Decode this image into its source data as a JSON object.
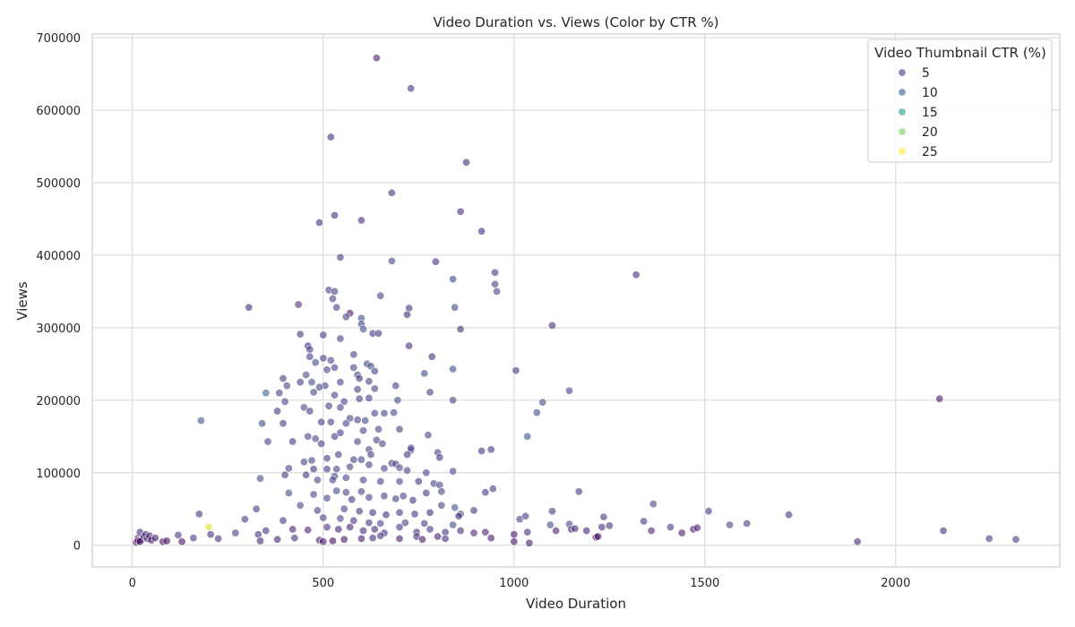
{
  "chart_data": {
    "type": "scatter",
    "title": "Video Duration vs. Views (Color by CTR %)",
    "xlabel": "Video Duration",
    "ylabel": "Views",
    "xlim": [
      -105,
      2430
    ],
    "ylim": [
      -30000,
      705000
    ],
    "xticks": [
      0,
      500,
      1000,
      1500,
      2000
    ],
    "yticks": [
      0,
      100000,
      200000,
      300000,
      400000,
      500000,
      600000,
      700000
    ],
    "grid": true,
    "legend": {
      "title": "Video Thumbnail CTR (%)",
      "placement": "top-right",
      "entries": [
        {
          "label": "5",
          "color": "#46327e"
        },
        {
          "label": "10",
          "color": "#365c8d"
        },
        {
          "label": "15",
          "color": "#1f9e89"
        },
        {
          "label": "20",
          "color": "#6ece58"
        },
        {
          "label": "25",
          "color": "#fde725"
        }
      ]
    },
    "colorscale": {
      "min": 2,
      "max": 27,
      "name": "viridis"
    },
    "points": [
      [
        640,
        672000,
        5
      ],
      [
        730,
        630000,
        6
      ],
      [
        520,
        563000,
        6
      ],
      [
        875,
        528000,
        6
      ],
      [
        680,
        486000,
        6
      ],
      [
        860,
        460000,
        6
      ],
      [
        530,
        455000,
        6
      ],
      [
        490,
        445000,
        6
      ],
      [
        600,
        448000,
        6
      ],
      [
        915,
        433000,
        6
      ],
      [
        545,
        397000,
        7
      ],
      [
        680,
        392000,
        8
      ],
      [
        795,
        391000,
        6
      ],
      [
        950,
        376000,
        7
      ],
      [
        1320,
        373000,
        6
      ],
      [
        840,
        367000,
        9
      ],
      [
        950,
        360000,
        8
      ],
      [
        515,
        352000,
        8
      ],
      [
        530,
        350000,
        8
      ],
      [
        955,
        350000,
        8
      ],
      [
        650,
        344000,
        8
      ],
      [
        305,
        328000,
        6
      ],
      [
        435,
        332000,
        6
      ],
      [
        525,
        340000,
        8
      ],
      [
        535,
        328000,
        8
      ],
      [
        845,
        328000,
        9
      ],
      [
        725,
        327000,
        6
      ],
      [
        570,
        320000,
        3
      ],
      [
        600,
        313000,
        9
      ],
      [
        560,
        315000,
        8
      ],
      [
        720,
        318000,
        6
      ],
      [
        600,
        305000,
        8
      ],
      [
        1100,
        303000,
        6
      ],
      [
        605,
        298000,
        9
      ],
      [
        860,
        298000,
        6
      ],
      [
        440,
        291000,
        7
      ],
      [
        500,
        290000,
        7
      ],
      [
        630,
        292000,
        7
      ],
      [
        645,
        292000,
        7
      ],
      [
        545,
        285000,
        8
      ],
      [
        460,
        275000,
        6
      ],
      [
        725,
        275000,
        6
      ],
      [
        465,
        270000,
        7
      ],
      [
        580,
        263000,
        8
      ],
      [
        500,
        258000,
        8
      ],
      [
        520,
        255000,
        8
      ],
      [
        465,
        260000,
        7
      ],
      [
        785,
        260000,
        6
      ],
      [
        530,
        245000,
        8
      ],
      [
        510,
        242000,
        8
      ],
      [
        395,
        230000,
        7
      ],
      [
        580,
        245000,
        8
      ],
      [
        615,
        250000,
        8
      ],
      [
        625,
        247000,
        9
      ],
      [
        1005,
        241000,
        7
      ],
      [
        840,
        243000,
        9
      ],
      [
        635,
        240000,
        8
      ],
      [
        480,
        252000,
        9
      ],
      [
        590,
        235000,
        9
      ],
      [
        595,
        230000,
        7
      ],
      [
        455,
        235000,
        9
      ],
      [
        470,
        225000,
        9
      ],
      [
        440,
        225000,
        7
      ],
      [
        405,
        220000,
        8
      ],
      [
        545,
        225000,
        8
      ],
      [
        505,
        220000,
        8
      ],
      [
        620,
        226000,
        8
      ],
      [
        765,
        237000,
        9
      ],
      [
        350,
        210000,
        12
      ],
      [
        385,
        210000,
        8
      ],
      [
        635,
        216000,
        8
      ],
      [
        690,
        220000,
        7
      ],
      [
        490,
        218000,
        8
      ],
      [
        590,
        215000,
        8
      ],
      [
        1145,
        213000,
        8
      ],
      [
        780,
        211000,
        8
      ],
      [
        475,
        211000,
        9
      ],
      [
        530,
        207000,
        8
      ],
      [
        555,
        198000,
        8
      ],
      [
        595,
        202000,
        8
      ],
      [
        620,
        203000,
        7
      ],
      [
        695,
        200000,
        9
      ],
      [
        1075,
        197000,
        9
      ],
      [
        840,
        200000,
        8
      ],
      [
        400,
        198000,
        8
      ],
      [
        515,
        192000,
        7
      ],
      [
        545,
        190000,
        8
      ],
      [
        450,
        190000,
        8
      ],
      [
        465,
        185000,
        7
      ],
      [
        380,
        185000,
        7
      ],
      [
        1060,
        183000,
        9
      ],
      [
        635,
        182000,
        8
      ],
      [
        660,
        182000,
        8
      ],
      [
        685,
        183000,
        8
      ],
      [
        570,
        175000,
        8
      ],
      [
        590,
        173000,
        8
      ],
      [
        520,
        170000,
        8
      ],
      [
        610,
        172000,
        9
      ],
      [
        495,
        170000,
        7
      ],
      [
        560,
        168000,
        8
      ],
      [
        180,
        172000,
        10
      ],
      [
        340,
        168000,
        9
      ],
      [
        395,
        168000,
        7
      ],
      [
        645,
        160000,
        8
      ],
      [
        700,
        160000,
        8
      ],
      [
        775,
        152000,
        8
      ],
      [
        545,
        155000,
        7
      ],
      [
        460,
        150000,
        8
      ],
      [
        420,
        143000,
        7
      ],
      [
        530,
        150000,
        7
      ],
      [
        355,
        143000,
        8
      ],
      [
        605,
        158000,
        8
      ],
      [
        480,
        147000,
        8
      ],
      [
        590,
        143000,
        8
      ],
      [
        640,
        145000,
        8
      ],
      [
        655,
        140000,
        8
      ],
      [
        495,
        140000,
        7
      ],
      [
        620,
        132000,
        8
      ],
      [
        730,
        131000,
        8
      ],
      [
        1035,
        150000,
        10
      ],
      [
        940,
        132000,
        7
      ],
      [
        915,
        130000,
        7
      ],
      [
        730,
        134000,
        8
      ],
      [
        800,
        128000,
        8
      ],
      [
        805,
        121000,
        7
      ],
      [
        625,
        125000,
        8
      ],
      [
        540,
        125000,
        8
      ],
      [
        720,
        125000,
        7
      ],
      [
        510,
        120000,
        7
      ],
      [
        580,
        118000,
        8
      ],
      [
        600,
        118000,
        8
      ],
      [
        470,
        117000,
        9
      ],
      [
        450,
        115000,
        8
      ],
      [
        680,
        113000,
        7
      ],
      [
        690,
        112000,
        8
      ],
      [
        410,
        106000,
        8
      ],
      [
        475,
        105000,
        7
      ],
      [
        535,
        105000,
        8
      ],
      [
        510,
        105000,
        7
      ],
      [
        570,
        108000,
        8
      ],
      [
        620,
        111000,
        8
      ],
      [
        700,
        107000,
        8
      ],
      [
        660,
        106000,
        8
      ],
      [
        720,
        103000,
        8
      ],
      [
        770,
        100000,
        8
      ],
      [
        840,
        102000,
        8
      ],
      [
        400,
        97000,
        7
      ],
      [
        455,
        97000,
        7
      ],
      [
        530,
        95000,
        8
      ],
      [
        485,
        90000,
        8
      ],
      [
        525,
        90000,
        8
      ],
      [
        560,
        93000,
        8
      ],
      [
        605,
        90000,
        8
      ],
      [
        650,
        88000,
        8
      ],
      [
        700,
        88000,
        8
      ],
      [
        750,
        88000,
        7
      ],
      [
        790,
        85000,
        8
      ],
      [
        805,
        83000,
        8
      ],
      [
        945,
        78000,
        7
      ],
      [
        925,
        73000,
        7
      ],
      [
        1170,
        74000,
        7
      ],
      [
        410,
        72000,
        9
      ],
      [
        535,
        75000,
        9
      ],
      [
        560,
        73000,
        8
      ],
      [
        600,
        74000,
        8
      ],
      [
        660,
        68000,
        8
      ],
      [
        710,
        68000,
        8
      ],
      [
        770,
        72000,
        7
      ],
      [
        810,
        74000,
        8
      ],
      [
        335,
        92000,
        9
      ],
      [
        475,
        70000,
        8
      ],
      [
        510,
        65000,
        8
      ],
      [
        575,
        63000,
        7
      ],
      [
        620,
        66000,
        8
      ],
      [
        690,
        64000,
        8
      ],
      [
        735,
        62000,
        7
      ],
      [
        810,
        55000,
        8
      ],
      [
        845,
        52000,
        10
      ],
      [
        860,
        43000,
        8
      ],
      [
        895,
        48000,
        7
      ],
      [
        1100,
        47000,
        7
      ],
      [
        1365,
        57000,
        8
      ],
      [
        1510,
        47000,
        7
      ],
      [
        1720,
        42000,
        7
      ],
      [
        325,
        50000,
        7
      ],
      [
        440,
        55000,
        8
      ],
      [
        485,
        48000,
        8
      ],
      [
        555,
        50000,
        8
      ],
      [
        595,
        47000,
        7
      ],
      [
        630,
        45000,
        6
      ],
      [
        665,
        42000,
        6
      ],
      [
        700,
        45000,
        7
      ],
      [
        740,
        43000,
        7
      ],
      [
        780,
        45000,
        6
      ],
      [
        855,
        40000,
        6
      ],
      [
        175,
        43000,
        7
      ],
      [
        295,
        36000,
        7
      ],
      [
        395,
        34000,
        7
      ],
      [
        500,
        38000,
        8
      ],
      [
        545,
        37000,
        8
      ],
      [
        580,
        34000,
        7
      ],
      [
        620,
        31000,
        7
      ],
      [
        650,
        30000,
        8
      ],
      [
        715,
        31000,
        8
      ],
      [
        765,
        30000,
        8
      ],
      [
        840,
        28000,
        9
      ],
      [
        1015,
        36000,
        8
      ],
      [
        1030,
        40000,
        7
      ],
      [
        1095,
        28000,
        9
      ],
      [
        1145,
        29000,
        8
      ],
      [
        1235,
        39000,
        7
      ],
      [
        1340,
        33000,
        7
      ],
      [
        1565,
        28000,
        8
      ],
      [
        1610,
        30000,
        8
      ],
      [
        270,
        17000,
        7
      ],
      [
        330,
        15000,
        7
      ],
      [
        350,
        20000,
        7
      ],
      [
        420,
        22000,
        5
      ],
      [
        460,
        21000,
        5
      ],
      [
        510,
        25000,
        6
      ],
      [
        540,
        22000,
        5
      ],
      [
        570,
        25000,
        5
      ],
      [
        605,
        20000,
        6
      ],
      [
        635,
        22000,
        6
      ],
      [
        660,
        17000,
        6
      ],
      [
        700,
        25000,
        7
      ],
      [
        745,
        18000,
        6
      ],
      [
        780,
        22000,
        7
      ],
      [
        820,
        18000,
        7
      ],
      [
        860,
        20000,
        6
      ],
      [
        895,
        17000,
        5
      ],
      [
        925,
        18000,
        5
      ],
      [
        1000,
        15000,
        4
      ],
      [
        1035,
        18000,
        6
      ],
      [
        1110,
        20000,
        5
      ],
      [
        1150,
        22000,
        6
      ],
      [
        1160,
        23000,
        6
      ],
      [
        1190,
        20000,
        5
      ],
      [
        1230,
        25000,
        6
      ],
      [
        1250,
        27000,
        6
      ],
      [
        1360,
        20000,
        5
      ],
      [
        1410,
        25000,
        7
      ],
      [
        1440,
        17000,
        4
      ],
      [
        1470,
        22000,
        4
      ],
      [
        1480,
        24000,
        5
      ],
      [
        1900,
        5000,
        6
      ],
      [
        2115,
        202000,
        4
      ],
      [
        2125,
        20000,
        6
      ],
      [
        2245,
        9000,
        7
      ],
      [
        2315,
        8000,
        7
      ],
      [
        15,
        10000,
        5
      ],
      [
        20,
        18000,
        6
      ],
      [
        25,
        8000,
        4
      ],
      [
        30,
        12000,
        5
      ],
      [
        35,
        15000,
        6
      ],
      [
        40,
        9000,
        4
      ],
      [
        45,
        13000,
        6
      ],
      [
        50,
        7000,
        4
      ],
      [
        60,
        10000,
        5
      ],
      [
        10,
        4000,
        3
      ],
      [
        15,
        6000,
        3
      ],
      [
        20,
        5000,
        3
      ],
      [
        80,
        5000,
        3
      ],
      [
        90,
        6000,
        3
      ],
      [
        120,
        14000,
        7
      ],
      [
        130,
        5000,
        3
      ],
      [
        160,
        10000,
        7
      ],
      [
        200,
        25000,
        26
      ],
      [
        205,
        15000,
        6
      ],
      [
        225,
        9000,
        6
      ],
      [
        335,
        6000,
        5
      ],
      [
        380,
        8000,
        5
      ],
      [
        425,
        10000,
        6
      ],
      [
        490,
        7000,
        5
      ],
      [
        500,
        5000,
        4
      ],
      [
        525,
        6000,
        3
      ],
      [
        555,
        8000,
        4
      ],
      [
        600,
        9000,
        4
      ],
      [
        630,
        10000,
        6
      ],
      [
        650,
        13000,
        7
      ],
      [
        700,
        9000,
        4
      ],
      [
        745,
        12000,
        6
      ],
      [
        760,
        8000,
        4
      ],
      [
        800,
        12000,
        5
      ],
      [
        820,
        9000,
        6
      ],
      [
        940,
        10000,
        4
      ],
      [
        1000,
        5000,
        4
      ],
      [
        1040,
        3000,
        4
      ],
      [
        1215,
        11000,
        3
      ],
      [
        1220,
        12000,
        3
      ]
    ]
  }
}
